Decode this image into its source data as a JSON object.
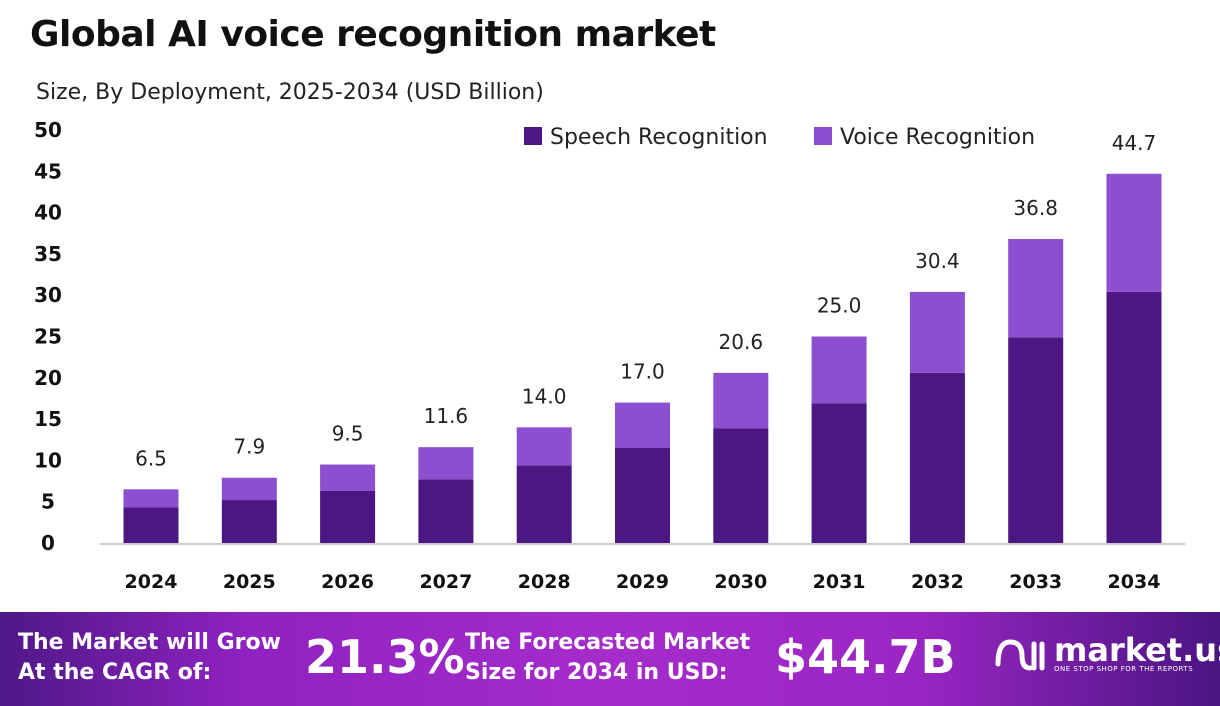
{
  "chart_data": {
    "type": "bar",
    "stacked": true,
    "title": "Global AI voice recognition market",
    "subtitle": "Size, By Deployment, 2025-2034 (USD Billion)",
    "categories": [
      "2024",
      "2025",
      "2026",
      "2027",
      "2028",
      "2029",
      "2030",
      "2031",
      "2032",
      "2033",
      "2034"
    ],
    "series": [
      {
        "name": "Speech Recognition",
        "color": "#4c1782",
        "values": [
          4.3,
          5.2,
          6.3,
          7.7,
          9.4,
          11.5,
          13.9,
          16.9,
          20.6,
          24.9,
          30.4
        ]
      },
      {
        "name": "Voice Recognition",
        "color": "#8b4fcf",
        "values": [
          2.2,
          2.7,
          3.2,
          3.9,
          4.6,
          5.5,
          6.7,
          8.1,
          9.8,
          11.9,
          14.3
        ]
      }
    ],
    "totals": [
      "6.5",
      "7.9",
      "9.5",
      "11.6",
      "14.0",
      "17.0",
      "20.6",
      "25.0",
      "30.4",
      "36.8",
      "44.7"
    ],
    "ylim": [
      0,
      50
    ],
    "yticks": [
      "0",
      "5",
      "10",
      "15",
      "20",
      "25",
      "30",
      "35",
      "40",
      "45",
      "50"
    ],
    "grid": false,
    "legend_position": "top-right"
  },
  "footer": {
    "cagr_label_1": "The Market will Grow",
    "cagr_label_2": "At the CAGR of:",
    "cagr_value": "21.3%",
    "forecast_label_1": "The Forecasted Market",
    "forecast_label_2": "Size for 2034 in USD:",
    "forecast_value": "$44.7B",
    "logo_name": "market.us",
    "logo_tagline": "ONE STOP SHOP FOR THE REPORTS"
  }
}
